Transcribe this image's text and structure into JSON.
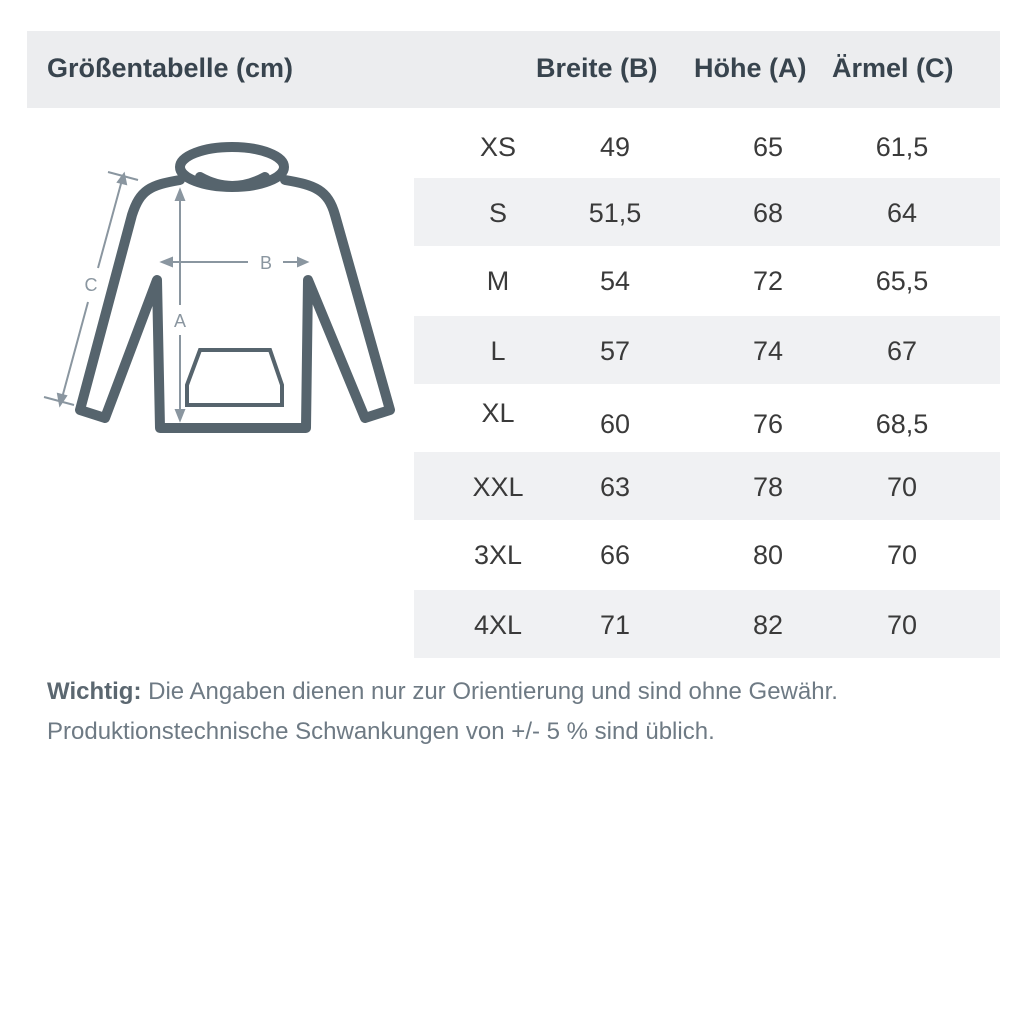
{
  "header": {
    "title": "Größentabelle (cm)",
    "col_b": "Breite (B)",
    "col_a": "Höhe (A)",
    "col_c": "Ärmel (C)"
  },
  "diagram": {
    "label_a": "A",
    "label_b": "B",
    "label_c": "C",
    "stroke_color": "#56646d",
    "arrow_color": "#8a96a0"
  },
  "rows": [
    {
      "size": "XS",
      "b": "49",
      "a": "65",
      "c": "61,5"
    },
    {
      "size": "S",
      "b": "51,5",
      "a": "68",
      "c": "64"
    },
    {
      "size": "M",
      "b": "54",
      "a": "72",
      "c": "65,5"
    },
    {
      "size": "L",
      "b": "57",
      "a": "74",
      "c": "67"
    },
    {
      "size": "XL",
      "b": "60",
      "a": "76",
      "c": "68,5"
    },
    {
      "size": "XXL",
      "b": "63",
      "a": "78",
      "c": "70"
    },
    {
      "size": "3XL",
      "b": "66",
      "a": "80",
      "c": "70"
    },
    {
      "size": "4XL",
      "b": "71",
      "a": "82",
      "c": "70"
    }
  ],
  "note": {
    "bold": "Wichtig:",
    "line1": "Die Angaben dienen nur zur Orientierung und sind ohne Gewähr.",
    "line2": "Produktionstechnische Schwankungen von +/- 5 % sind üblich."
  }
}
